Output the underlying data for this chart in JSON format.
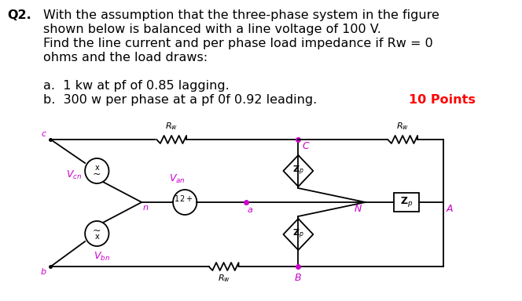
{
  "bg_color": "#ffffff",
  "text_color": "#000000",
  "pink_color": "#cc00cc",
  "red_color": "#ff0000",
  "title_line1": "With the assumption that the three-phase system in the figure",
  "title_line2": "shown below is balanced with a line voltage of 100 V.",
  "title_line3": "Find the line current and per phase load impedance if Rw = 0",
  "title_line4": "ohms and the load draws:",
  "item_a": "a.  1 kw at pf of 0.85 lagging.",
  "item_b": "b.  300 w per phase at a pf 0f 0.92 leading.",
  "points_text": "10 Points",
  "q_label": "Q2."
}
